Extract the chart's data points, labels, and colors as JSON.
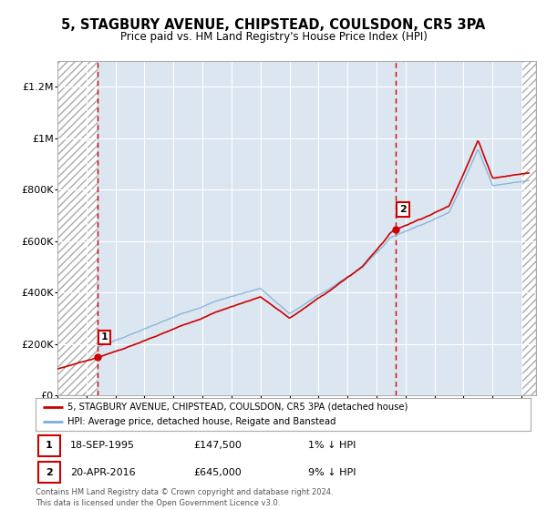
{
  "title_line1": "5, STAGBURY AVENUE, CHIPSTEAD, COULSDON, CR5 3PA",
  "title_line2": "Price paid vs. HM Land Registry's House Price Index (HPI)",
  "sale1_date": "1995-09-18",
  "sale1_price": 147500,
  "sale1_label": "1",
  "sale2_date": "2016-04-20",
  "sale2_price": 645000,
  "sale2_label": "2",
  "legend_line1": "5, STAGBURY AVENUE, CHIPSTEAD, COULSDON, CR5 3PA (detached house)",
  "legend_line2": "HPI: Average price, detached house, Reigate and Banstead",
  "ann1_date": "18-SEP-1995",
  "ann1_price": "£147,500",
  "ann1_rel": "1% ↓ HPI",
  "ann2_date": "20-APR-2016",
  "ann2_price": "£645,000",
  "ann2_rel": "9% ↓ HPI",
  "footer": "Contains HM Land Registry data © Crown copyright and database right 2024.\nThis data is licensed under the Open Government Licence v3.0.",
  "ylim": [
    0,
    1300000
  ],
  "sale_color": "#cc0000",
  "hpi_color": "#7bafd4",
  "bg_color": "#dce6f1",
  "hatch_bg": "#e8e8e8",
  "xlim_start": 1993,
  "xlim_end": 2026
}
